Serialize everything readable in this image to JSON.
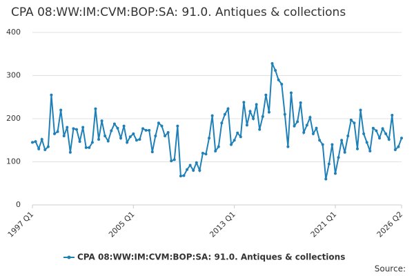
{
  "chart_data": {
    "type": "line",
    "title": "CPA 08:WW:IM:CVM:BOP:SA: 91.0. Antiques & collections",
    "source": "Source:",
    "categories": [
      "1997 Q1",
      null,
      null,
      null,
      null,
      null,
      null,
      null,
      null,
      null,
      null,
      null,
      null,
      null,
      null,
      null,
      null,
      null,
      null,
      null,
      null,
      null,
      null,
      null,
      null,
      null,
      null,
      null,
      null,
      null,
      null,
      null,
      "2005 Q1",
      null,
      null,
      null,
      null,
      null,
      null,
      null,
      null,
      null,
      null,
      null,
      null,
      null,
      null,
      null,
      null,
      null,
      null,
      null,
      null,
      null,
      null,
      null,
      null,
      null,
      null,
      null,
      null,
      null,
      null,
      null,
      "2013 Q1",
      null,
      null,
      null,
      null,
      null,
      null,
      null,
      null,
      null,
      null,
      null,
      null,
      null,
      null,
      null,
      null,
      null,
      null,
      null,
      null,
      null,
      null,
      null,
      null,
      null,
      null,
      null,
      null,
      null,
      null,
      null,
      "2021 Q1",
      null,
      null,
      null,
      null,
      null,
      null,
      null,
      null,
      null,
      null,
      null,
      null,
      null,
      null,
      null,
      null,
      null,
      null,
      null,
      null,
      "2026 Q2"
    ],
    "series": [
      {
        "name": "CPA 08:WW:IM:CVM:BOP:SA: 91.0. Antiques & collections",
        "color": "#1f80b8",
        "values": [
          145,
          147,
          130,
          152,
          128,
          135,
          255,
          165,
          170,
          220,
          160,
          180,
          122,
          177,
          175,
          147,
          180,
          133,
          133,
          145,
          223,
          152,
          195,
          160,
          148,
          172,
          188,
          178,
          155,
          183,
          145,
          158,
          165,
          150,
          152,
          177,
          173,
          173,
          123,
          160,
          190,
          183,
          160,
          168,
          102,
          105,
          183,
          67,
          68,
          82,
          92,
          80,
          98,
          80,
          120,
          118,
          155,
          207,
          125,
          135,
          190,
          210,
          223,
          140,
          150,
          167,
          158,
          238,
          185,
          217,
          200,
          233,
          175,
          205,
          255,
          215,
          328,
          312,
          290,
          280,
          210,
          135,
          260,
          183,
          193,
          237,
          168,
          185,
          203,
          165,
          178,
          150,
          140,
          60,
          95,
          140,
          73,
          110,
          150,
          122,
          160,
          197,
          190,
          130,
          220,
          165,
          145,
          125,
          178,
          172,
          155,
          177,
          165,
          152,
          208,
          128,
          135,
          155
        ]
      }
    ],
    "ylim": [
      0,
      400
    ],
    "yticks": [
      0,
      100,
      200,
      300,
      400
    ],
    "grid": true,
    "legend": "bottom"
  }
}
